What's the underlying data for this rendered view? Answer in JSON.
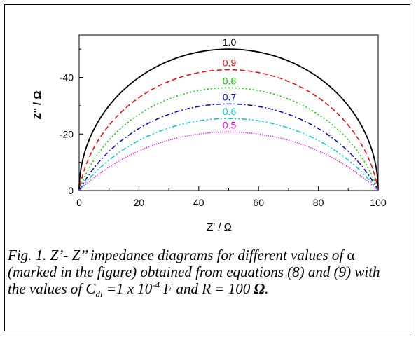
{
  "chart_data": {
    "type": "line",
    "xlabel": "Z' / Ω",
    "ylabel": "Z'' / Ω",
    "xlim": [
      0,
      100
    ],
    "ylim": [
      0,
      -55
    ],
    "xticks": [
      0,
      20,
      40,
      60,
      80,
      100
    ],
    "yticks": [
      0,
      -20,
      -40
    ],
    "grid": false,
    "legend": "none",
    "series": [
      {
        "name": "1.0",
        "alpha": 1.0,
        "color": "#000000",
        "dash": "solid",
        "R": 100
      },
      {
        "name": "0.9",
        "alpha": 0.9,
        "color": "#ff0000",
        "dash": "dash",
        "R": 100
      },
      {
        "name": "0.8",
        "alpha": 0.8,
        "color": "#00cc00",
        "dash": "dot",
        "R": 100
      },
      {
        "name": "0.7",
        "alpha": 0.7,
        "color": "#0000cc",
        "dash": "dashdot",
        "R": 100
      },
      {
        "name": "0.6",
        "alpha": 0.6,
        "color": "#00cccc",
        "dash": "dashdotdot",
        "R": 100
      },
      {
        "name": "0.5",
        "alpha": 0.5,
        "color": "#ff00ff",
        "dash": "finedot",
        "R": 100
      }
    ]
  },
  "caption": {
    "text1": "Fig. 1. Z’- Z’’ impedance diagrams for different values of ",
    "alpha_symbol": "α",
    "text2": " (marked in the figure) obtained from equations (8) and (9) with the values of C",
    "sub": "dl",
    "text3": " =1 x 10",
    "sup": "-4",
    "text4": " F and R = 100 ",
    "omega": "Ω",
    "text5": "."
  }
}
